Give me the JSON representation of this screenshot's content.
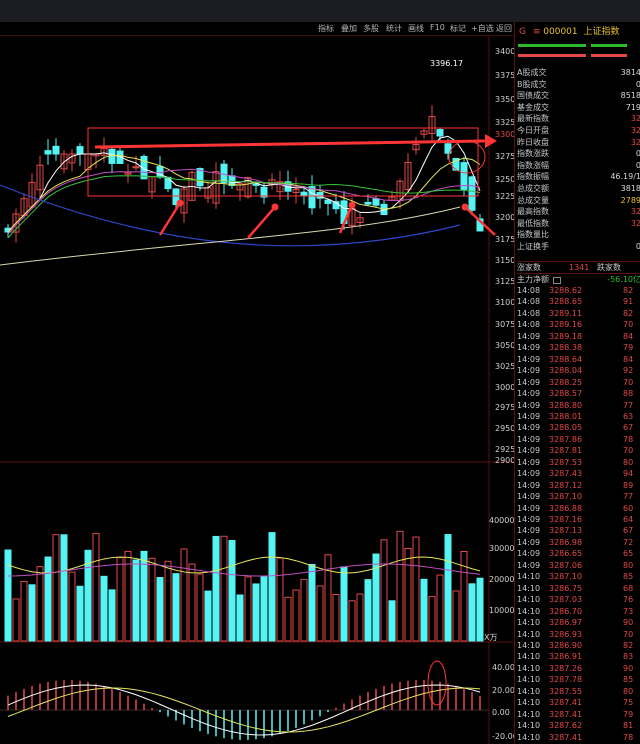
{
  "toolbar": {
    "items": [
      "指标",
      "叠加",
      "多股",
      "统计",
      "画线",
      "F10",
      "标记",
      "+自选",
      "返回"
    ]
  },
  "kline": {
    "price_axis": [
      "3400",
      "3375",
      "3350",
      "3325",
      "3300",
      "3275",
      "3250",
      "3225",
      "3200",
      "3175",
      "3150",
      "3125",
      "3100",
      "3075",
      "3050",
      "3025",
      "3000",
      "2975",
      "2950",
      "2925",
      "2900"
    ],
    "high_label": "3396.17",
    "volume_axis": [
      "40000",
      "30000",
      "20000",
      "10000"
    ],
    "volume_unit": "X万",
    "macd_axis": [
      "40.00",
      "20.00",
      "0.00",
      "-20.00"
    ]
  },
  "quote": {
    "code": "000001",
    "name": "上证指数",
    "rows": [
      {
        "k": "A股成交",
        "v": "3814"
      },
      {
        "k": "B股成交",
        "v": "0"
      },
      {
        "k": "国债成交",
        "v": "8518"
      },
      {
        "k": "基金成交",
        "v": "719"
      },
      {
        "k": "最新指数",
        "v": "32"
      },
      {
        "k": "今日开盘",
        "v": "32"
      },
      {
        "k": "昨日收盘",
        "v": "32"
      },
      {
        "k": "指数涨跌",
        "v": "0"
      },
      {
        "k": "指数涨幅",
        "v": "0"
      },
      {
        "k": "指数振幅",
        "v": "46.19/1"
      },
      {
        "k": "总成交额",
        "v": "3818"
      },
      {
        "k": "总成交量",
        "v": "2789"
      },
      {
        "k": "最高指数",
        "v": "32"
      },
      {
        "k": "最低指数",
        "v": "32"
      },
      {
        "k": "指数量比",
        "v": ""
      },
      {
        "k": "上证换手",
        "v": "0"
      }
    ],
    "rise_label": "涨家数",
    "rise_value": "1341",
    "fall_label": "跌家数",
    "flow_label": "主力净额",
    "flow_value": "-56.10亿"
  },
  "ticks": [
    {
      "t": "14:08",
      "p": "3288.62",
      "v": "82"
    },
    {
      "t": "14:08",
      "p": "3288.65",
      "v": "91"
    },
    {
      "t": "14:08",
      "p": "3289.11",
      "v": "82"
    },
    {
      "t": "14:08",
      "p": "3289.16",
      "v": "70"
    },
    {
      "t": "14:09",
      "p": "3289.18",
      "v": "84"
    },
    {
      "t": "14:09",
      "p": "3288.38",
      "v": "79"
    },
    {
      "t": "14:09",
      "p": "3288.64",
      "v": "84"
    },
    {
      "t": "14:09",
      "p": "3288.04",
      "v": "92"
    },
    {
      "t": "14:09",
      "p": "3288.25",
      "v": "70"
    },
    {
      "t": "14:09",
      "p": "3288.57",
      "v": "88"
    },
    {
      "t": "14:09",
      "p": "3288.80",
      "v": "77"
    },
    {
      "t": "14:09",
      "p": "3288.01",
      "v": "63"
    },
    {
      "t": "14:09",
      "p": "3288.05",
      "v": "67"
    },
    {
      "t": "14:09",
      "p": "3287.86",
      "v": "78"
    },
    {
      "t": "14:09",
      "p": "3287.81",
      "v": "70"
    },
    {
      "t": "14:09",
      "p": "3287.53",
      "v": "80"
    },
    {
      "t": "14:09",
      "p": "3287.43",
      "v": "94"
    },
    {
      "t": "14:09",
      "p": "3287.12",
      "v": "89"
    },
    {
      "t": "14:09",
      "p": "3287.10",
      "v": "77"
    },
    {
      "t": "14:09",
      "p": "3286.88",
      "v": "60"
    },
    {
      "t": "14:09",
      "p": "3287.16",
      "v": "64"
    },
    {
      "t": "14:09",
      "p": "3287.13",
      "v": "67"
    },
    {
      "t": "14:09",
      "p": "3286.98",
      "v": "72"
    },
    {
      "t": "14:09",
      "p": "3286.65",
      "v": "65"
    },
    {
      "t": "14:09",
      "p": "3287.06",
      "v": "80"
    },
    {
      "t": "14:10",
      "p": "3287.10",
      "v": "85"
    },
    {
      "t": "14:10",
      "p": "3286.75",
      "v": "68"
    },
    {
      "t": "14:10",
      "p": "3287.03",
      "v": "76"
    },
    {
      "t": "14:10",
      "p": "3286.70",
      "v": "73"
    },
    {
      "t": "14:10",
      "p": "3286.97",
      "v": "90"
    },
    {
      "t": "14:10",
      "p": "3286.93",
      "v": "70"
    },
    {
      "t": "14:10",
      "p": "3286.90",
      "v": "82"
    },
    {
      "t": "14:10",
      "p": "3286.91",
      "v": "83"
    },
    {
      "t": "14:10",
      "p": "3287.26",
      "v": "90"
    },
    {
      "t": "14:10",
      "p": "3287.78",
      "v": "85"
    },
    {
      "t": "14:10",
      "p": "3287.55",
      "v": "80"
    },
    {
      "t": "14:10",
      "p": "3287.41",
      "v": "75"
    },
    {
      "t": "14:10",
      "p": "3287.41",
      "v": "79"
    },
    {
      "t": "14:10",
      "p": "3287.62",
      "v": "81"
    },
    {
      "t": "14:10",
      "p": "3287.41",
      "v": "78"
    }
  ],
  "colors": {
    "up": "#e34848",
    "down": "#54f4f4",
    "ma5": "#ffffff",
    "ma10": "#e6e65a",
    "ma20": "#c050c0",
    "ma60": "#38c038",
    "ma120": "#2e46c8",
    "ma250": "#d8d8b0",
    "arrow": "#ff3535"
  }
}
